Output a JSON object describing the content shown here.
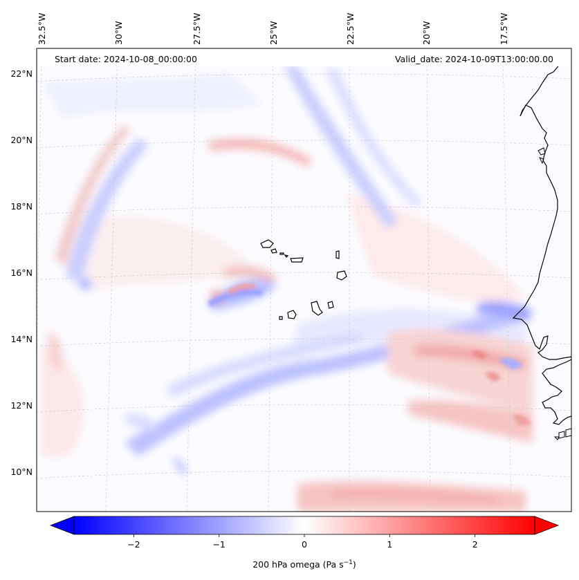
{
  "map": {
    "start_date_text": "Start date: 2024-10-08_00:00:00",
    "valid_date_text": "Valid_date: 2024-10-09T13:00:00.00",
    "longitude_labels": [
      "32.5°W",
      "30°W",
      "27.5°W",
      "25°W",
      "22.5°W",
      "20°W",
      "17.5°W"
    ],
    "latitude_labels": [
      "22°N",
      "20°N",
      "18°N",
      "16°N",
      "14°N",
      "12°N",
      "10°N"
    ],
    "field_colors": {
      "negative": "#0000ff",
      "zero": "#ffffff",
      "positive": "#ff0000",
      "coastline": "#000000",
      "gridline": "#c8c8c8"
    }
  },
  "colorbar": {
    "label_main": "200 hPa omega (Pa s",
    "label_sup": "−1",
    "label_end": ")",
    "min": -2.7,
    "max": 2.7,
    "tick_values": [
      -2,
      -1,
      0,
      1,
      2
    ],
    "tick_labels": [
      "−2",
      "−1",
      "0",
      "1",
      "2"
    ],
    "extend": "both",
    "colormap": "bwr"
  }
}
